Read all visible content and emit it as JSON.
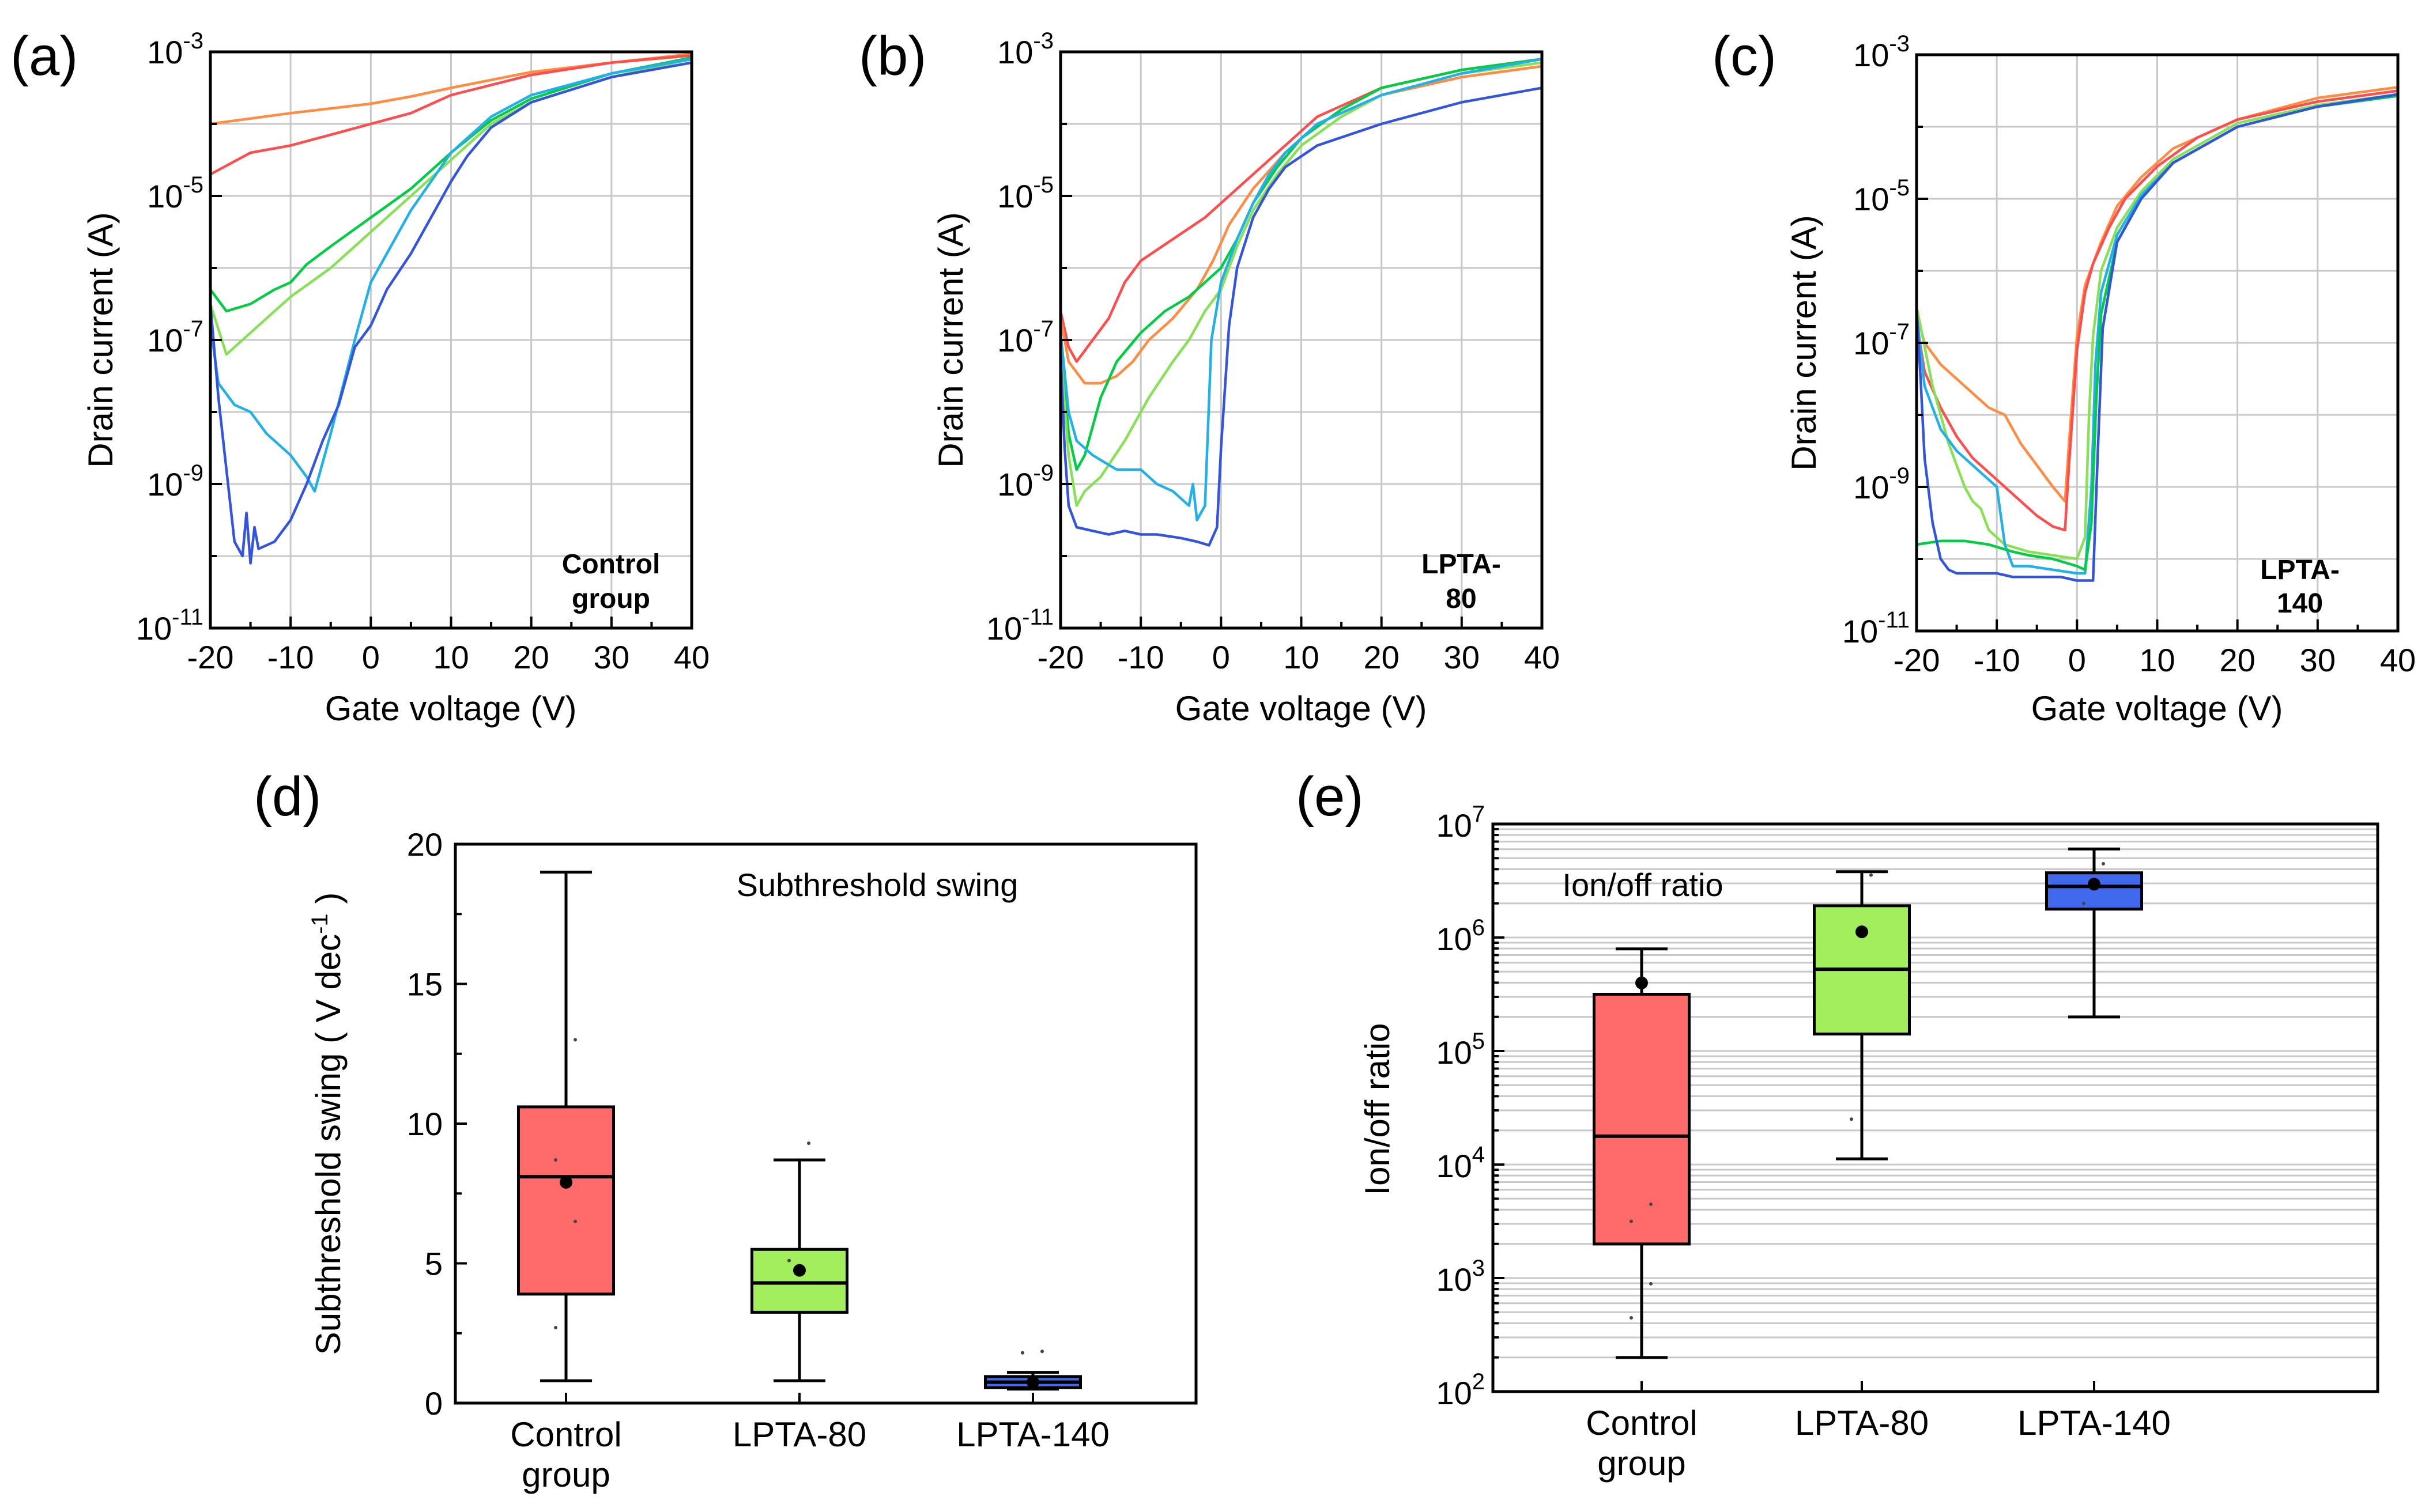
{
  "panels": {
    "a": {
      "letter": "(a)",
      "annotation": [
        "Control",
        "group"
      ]
    },
    "b": {
      "letter": "(b)",
      "annotation": [
        "LPTA-",
        "80"
      ]
    },
    "c": {
      "letter": "(c)",
      "annotation": [
        "LPTA-",
        "140"
      ]
    },
    "d": {
      "letter": "(d)"
    },
    "e": {
      "letter": "(e)"
    }
  },
  "chart_data": [
    {
      "id": "a",
      "type": "line",
      "xlabel": "Gate voltage (V)",
      "ylabel": "Drain current (A)",
      "xlim": [
        -20,
        40
      ],
      "xticks": [
        "-20",
        "-10",
        "0",
        "10",
        "20",
        "30",
        "40"
      ],
      "yscale": "log",
      "ylim_exp": [
        -11,
        -3
      ],
      "yticks": [
        {
          "base": "10",
          "exp": "-3"
        },
        {
          "base": "10",
          "exp": "-5"
        },
        {
          "base": "10",
          "exp": "-7"
        },
        {
          "base": "10",
          "exp": "-9"
        },
        {
          "base": "10",
          "exp": "-11"
        }
      ],
      "series": [
        {
          "color": "#ff8c42",
          "x": [
            -20,
            -10,
            0,
            5,
            10,
            20,
            30,
            40
          ],
          "log10y": [
            -4.0,
            -3.85,
            -3.72,
            -3.62,
            -3.5,
            -3.28,
            -3.15,
            -3.03
          ]
        },
        {
          "color": "#ff4d4d",
          "x": [
            -20,
            -15,
            -10,
            -5,
            0,
            5,
            10,
            20,
            30,
            40
          ],
          "log10y": [
            -4.7,
            -4.4,
            -4.3,
            -4.15,
            -4.0,
            -3.85,
            -3.6,
            -3.32,
            -3.15,
            -3.05
          ]
        },
        {
          "color": "#00cc44",
          "x": [
            -20,
            -18,
            -15,
            -12,
            -10,
            -8,
            -5,
            0,
            5,
            10,
            15,
            20,
            30,
            40
          ],
          "log10y": [
            -6.3,
            -6.6,
            -6.5,
            -6.3,
            -6.2,
            -5.95,
            -5.7,
            -5.3,
            -4.9,
            -4.4,
            -3.95,
            -3.65,
            -3.3,
            -3.08
          ]
        },
        {
          "color": "#88e055",
          "x": [
            -20,
            -18,
            -15,
            -10,
            -5,
            0,
            5,
            10,
            15,
            20,
            30,
            40
          ],
          "log10y": [
            -6.5,
            -7.2,
            -6.9,
            -6.4,
            -6.0,
            -5.5,
            -5.0,
            -4.5,
            -4.0,
            -3.7,
            -3.35,
            -3.1
          ]
        },
        {
          "color": "#22b0e8",
          "x": [
            -20,
            -19,
            -17,
            -15,
            -13,
            -10,
            -8,
            -7,
            -5,
            -2,
            0,
            5,
            10,
            15,
            20,
            30,
            40
          ],
          "log10y": [
            -6.8,
            -7.6,
            -7.9,
            -8.0,
            -8.3,
            -8.6,
            -8.9,
            -9.1,
            -8.3,
            -7.0,
            -6.2,
            -5.2,
            -4.4,
            -3.9,
            -3.6,
            -3.3,
            -3.1
          ]
        },
        {
          "color": "#3355dd",
          "x": [
            -20,
            -19,
            -18,
            -17,
            -16,
            -15.5,
            -15,
            -14.5,
            -14,
            -12,
            -10,
            -8,
            -6,
            -4,
            -2,
            0,
            2,
            5,
            8,
            10,
            12,
            15,
            20,
            30,
            40
          ],
          "log10y": [
            -6.5,
            -7.8,
            -8.8,
            -9.8,
            -10.0,
            -9.4,
            -10.1,
            -9.6,
            -9.9,
            -9.8,
            -9.5,
            -9.0,
            -8.4,
            -7.9,
            -7.1,
            -6.8,
            -6.3,
            -5.8,
            -5.2,
            -4.8,
            -4.45,
            -4.05,
            -3.7,
            -3.35,
            -3.15
          ]
        }
      ]
    },
    {
      "id": "b",
      "type": "line",
      "xlabel": "Gate voltage (V)",
      "ylabel": "Drain current (A)",
      "xlim": [
        -20,
        40
      ],
      "xticks": [
        "-20",
        "-10",
        "0",
        "10",
        "20",
        "30",
        "40"
      ],
      "yscale": "log",
      "ylim_exp": [
        -11,
        -3
      ],
      "yticks": [
        {
          "base": "10",
          "exp": "-3"
        },
        {
          "base": "10",
          "exp": "-5"
        },
        {
          "base": "10",
          "exp": "-7"
        },
        {
          "base": "10",
          "exp": "-9"
        },
        {
          "base": "10",
          "exp": "-11"
        }
      ],
      "series": [
        {
          "color": "#ff4d4d",
          "x": [
            -20,
            -19,
            -18,
            -16,
            -14,
            -12,
            -10,
            -6,
            -2,
            0,
            4,
            8,
            12,
            20,
            30,
            40
          ],
          "log10y": [
            -6.6,
            -7.1,
            -7.3,
            -7.0,
            -6.7,
            -6.2,
            -5.9,
            -5.6,
            -5.3,
            -5.1,
            -4.7,
            -4.3,
            -3.9,
            -3.5,
            -3.25,
            -3.1
          ]
        },
        {
          "color": "#ff8c42",
          "x": [
            -20,
            -19,
            -17,
            -15,
            -13,
            -11,
            -9,
            -6,
            -3,
            -1,
            1,
            4,
            8,
            12,
            20,
            30,
            40
          ],
          "log10y": [
            -6.7,
            -7.3,
            -7.6,
            -7.6,
            -7.5,
            -7.3,
            -7.0,
            -6.7,
            -6.3,
            -5.9,
            -5.4,
            -4.9,
            -4.4,
            -4.0,
            -3.6,
            -3.35,
            -3.2
          ]
        },
        {
          "color": "#00cc44",
          "x": [
            -20,
            -19,
            -18,
            -17,
            -16,
            -15,
            -13,
            -10,
            -7,
            -4,
            -2,
            0,
            2,
            4,
            7,
            10,
            15,
            20,
            30,
            40
          ],
          "log10y": [
            -7.0,
            -8.3,
            -8.8,
            -8.6,
            -8.2,
            -7.8,
            -7.3,
            -6.9,
            -6.6,
            -6.4,
            -6.2,
            -6.0,
            -5.6,
            -5.1,
            -4.6,
            -4.2,
            -3.8,
            -3.5,
            -3.25,
            -3.1
          ]
        },
        {
          "color": "#88e055",
          "x": [
            -20,
            -19,
            -18,
            -17,
            -15,
            -12,
            -9,
            -6,
            -4,
            -3,
            -2,
            0,
            2,
            4,
            7,
            10,
            15,
            20,
            30,
            40
          ],
          "log10y": [
            -7.2,
            -8.6,
            -9.3,
            -9.1,
            -8.9,
            -8.4,
            -7.8,
            -7.3,
            -7.0,
            -6.8,
            -6.6,
            -6.3,
            -5.7,
            -5.2,
            -4.7,
            -4.3,
            -3.9,
            -3.6,
            -3.3,
            -3.15
          ]
        },
        {
          "color": "#22b0e8",
          "x": [
            -20,
            -19,
            -18,
            -16,
            -13,
            -10,
            -8,
            -6,
            -4,
            -3.5,
            -3,
            -2,
            -1.2,
            0,
            2,
            4,
            6,
            8,
            12,
            20,
            30,
            40
          ],
          "log10y": [
            -6.9,
            -8.0,
            -8.4,
            -8.6,
            -8.8,
            -8.8,
            -9.0,
            -9.1,
            -9.3,
            -9.0,
            -9.5,
            -9.3,
            -7.0,
            -6.2,
            -5.6,
            -5.1,
            -4.7,
            -4.4,
            -4.0,
            -3.6,
            -3.3,
            -3.1
          ]
        },
        {
          "color": "#3355dd",
          "x": [
            -20,
            -19.5,
            -19,
            -18,
            -16,
            -14,
            -12,
            -10,
            -8,
            -5,
            -3,
            -1.5,
            -0.5,
            0,
            1,
            2,
            4,
            6,
            8,
            12,
            20,
            30,
            40
          ],
          "log10y": [
            -7.2,
            -8.5,
            -9.3,
            -9.6,
            -9.65,
            -9.7,
            -9.65,
            -9.7,
            -9.7,
            -9.75,
            -9.8,
            -9.85,
            -9.6,
            -8.5,
            -6.8,
            -6.0,
            -5.3,
            -4.9,
            -4.6,
            -4.3,
            -4.0,
            -3.7,
            -3.5
          ]
        }
      ]
    },
    {
      "id": "c",
      "type": "line",
      "xlabel": "Gate voltage (V)",
      "ylabel": "Drain current (A)",
      "xlim": [
        -20,
        40
      ],
      "xticks": [
        "-20",
        "-10",
        "0",
        "10",
        "20",
        "30",
        "40"
      ],
      "yscale": "log",
      "ylim_exp": [
        -11,
        -3
      ],
      "yticks": [
        {
          "base": "10",
          "exp": "-3"
        },
        {
          "base": "10",
          "exp": "-5"
        },
        {
          "base": "10",
          "exp": "-7"
        },
        {
          "base": "10",
          "exp": "-9"
        },
        {
          "base": "10",
          "exp": "-11"
        }
      ],
      "series": [
        {
          "color": "#ff8c42",
          "x": [
            -20,
            -19,
            -17,
            -15,
            -13,
            -11,
            -9,
            -7,
            -5,
            -3,
            -1.5,
            -1,
            0,
            1,
            3,
            5,
            8,
            12,
            20,
            30,
            40
          ],
          "log10y": [
            -6.6,
            -7.0,
            -7.3,
            -7.5,
            -7.7,
            -7.9,
            -8.0,
            -8.4,
            -8.7,
            -9.0,
            -9.2,
            -8.4,
            -6.9,
            -6.2,
            -5.6,
            -5.1,
            -4.7,
            -4.3,
            -3.9,
            -3.6,
            -3.45
          ]
        },
        {
          "color": "#ff4d4d",
          "x": [
            -20,
            -19,
            -17,
            -15,
            -13,
            -11,
            -9,
            -7,
            -5,
            -3,
            -1.5,
            -1,
            0,
            1,
            2,
            4,
            6,
            10,
            15,
            20,
            30,
            40
          ],
          "log10y": [
            -6.7,
            -7.4,
            -7.9,
            -8.3,
            -8.6,
            -8.8,
            -9.0,
            -9.2,
            -9.4,
            -9.55,
            -9.6,
            -8.7,
            -7.1,
            -6.3,
            -5.9,
            -5.4,
            -5.0,
            -4.55,
            -4.15,
            -3.9,
            -3.65,
            -3.5
          ]
        },
        {
          "color": "#88e055",
          "x": [
            -20,
            -18,
            -16,
            -14,
            -13,
            -12,
            -11,
            -9,
            -6,
            -3,
            0,
            1,
            1.5,
            2,
            3,
            5,
            8,
            12,
            20,
            30,
            40
          ],
          "log10y": [
            -6.5,
            -7.6,
            -8.4,
            -9.0,
            -9.2,
            -9.3,
            -9.6,
            -9.8,
            -9.9,
            -9.95,
            -10.0,
            -9.7,
            -8.0,
            -6.9,
            -6.0,
            -5.4,
            -4.9,
            -4.45,
            -3.95,
            -3.7,
            -3.55
          ]
        },
        {
          "color": "#22b0e8",
          "x": [
            -20,
            -19,
            -17,
            -15,
            -12,
            -10,
            -9,
            -8,
            -6,
            -3,
            0,
            1,
            1.8,
            2.3,
            3,
            5,
            8,
            12,
            20,
            30,
            40
          ],
          "log10y": [
            -6.6,
            -7.6,
            -8.2,
            -8.5,
            -8.8,
            -9.0,
            -9.8,
            -10.1,
            -10.1,
            -10.15,
            -10.2,
            -10.2,
            -9.0,
            -7.3,
            -6.3,
            -5.5,
            -4.95,
            -4.5,
            -4.0,
            -3.72,
            -3.57
          ]
        },
        {
          "color": "#00cc44",
          "x": [
            -20,
            -17,
            -14,
            -11,
            -8,
            -6,
            -3,
            0,
            1,
            1.8,
            2.4,
            3,
            5,
            8,
            12,
            20,
            30,
            40
          ],
          "log10y": [
            -9.8,
            -9.75,
            -9.75,
            -9.8,
            -9.9,
            -9.95,
            -10.0,
            -10.1,
            -10.15,
            -9.5,
            -7.8,
            -6.6,
            -5.6,
            -5.0,
            -4.5,
            -4.0,
            -3.72,
            -3.57
          ]
        },
        {
          "color": "#3355dd",
          "x": [
            -20,
            -19.5,
            -19,
            -18,
            -17,
            -16,
            -15,
            -14,
            -12,
            -10,
            -8,
            -5,
            -2,
            0,
            1,
            1.5,
            2,
            2.6,
            3.2,
            5,
            8,
            12,
            20,
            30,
            40
          ],
          "log10y": [
            -6.5,
            -7.5,
            -8.6,
            -9.5,
            -10.0,
            -10.15,
            -10.2,
            -10.2,
            -10.2,
            -10.2,
            -10.25,
            -10.25,
            -10.25,
            -10.3,
            -10.3,
            -10.3,
            -10.3,
            -8.5,
            -6.8,
            -5.6,
            -5.0,
            -4.5,
            -4.0,
            -3.72,
            -3.55
          ]
        }
      ]
    },
    {
      "id": "d",
      "type": "box",
      "title": "Subthreshold swing",
      "ylabel_main": "Subthreshold swing ( V dec",
      "ylabel_sup": "-1",
      "ylabel_end": " )",
      "ylim": [
        0,
        20
      ],
      "yticks": [
        "0",
        "5",
        "10",
        "15",
        "20"
      ],
      "groups": [
        {
          "label": [
            "Control",
            "group"
          ],
          "color": "#ff6b6b",
          "q1": 3.9,
          "median": 8.1,
          "q3": 10.6,
          "whisker_low": 0.8,
          "whisker_high": 19.0,
          "mean": 7.9,
          "points": [
            13.0,
            8.7,
            6.5,
            2.7
          ]
        },
        {
          "label": [
            "LPTA-80"
          ],
          "color": "#a3ee5c",
          "q1": 3.25,
          "median": 4.3,
          "q3": 5.5,
          "whisker_low": 0.8,
          "whisker_high": 8.7,
          "mean": 4.75,
          "points": [
            9.3,
            5.1
          ]
        },
        {
          "label": [
            "LPTA-140"
          ],
          "color": "#4169ee",
          "q1": 0.55,
          "median": 0.75,
          "q3": 0.95,
          "whisker_low": 0.5,
          "whisker_high": 1.1,
          "mean": 0.75,
          "points": [
            1.85,
            1.8
          ]
        }
      ]
    },
    {
      "id": "e",
      "type": "box",
      "title": "Ion/off ratio",
      "ylabel": "Ion/off ratio",
      "yscale": "log",
      "ylim_exp": [
        2,
        7
      ],
      "yticks": [
        {
          "base": "10",
          "exp": "2"
        },
        {
          "base": "10",
          "exp": "3"
        },
        {
          "base": "10",
          "exp": "4"
        },
        {
          "base": "10",
          "exp": "5"
        },
        {
          "base": "10",
          "exp": "6"
        },
        {
          "base": "10",
          "exp": "7"
        }
      ],
      "groups": [
        {
          "label": [
            "Control",
            "group"
          ],
          "color": "#ff6b6b",
          "q1_log": 3.3,
          "median_log": 4.25,
          "q3_log": 5.5,
          "whisker_low_log": 2.3,
          "whisker_high_log": 5.9,
          "mean_log": 5.6,
          "points_log": [
            3.65,
            3.5,
            2.95,
            2.65
          ]
        },
        {
          "label": [
            "LPTA-80"
          ],
          "color": "#a3ee5c",
          "q1_log": 5.15,
          "median_log": 5.72,
          "q3_log": 6.28,
          "whisker_low_log": 4.05,
          "whisker_high_log": 6.58,
          "mean_log": 6.05,
          "points_log": [
            6.55,
            4.4
          ]
        },
        {
          "label": [
            "LPTA-140"
          ],
          "color": "#4169ee",
          "q1_log": 6.25,
          "median_log": 6.45,
          "q3_log": 6.57,
          "whisker_low_log": 5.3,
          "whisker_high_log": 6.78,
          "mean_log": 6.47,
          "points_log": [
            6.65,
            6.3
          ]
        }
      ]
    }
  ]
}
